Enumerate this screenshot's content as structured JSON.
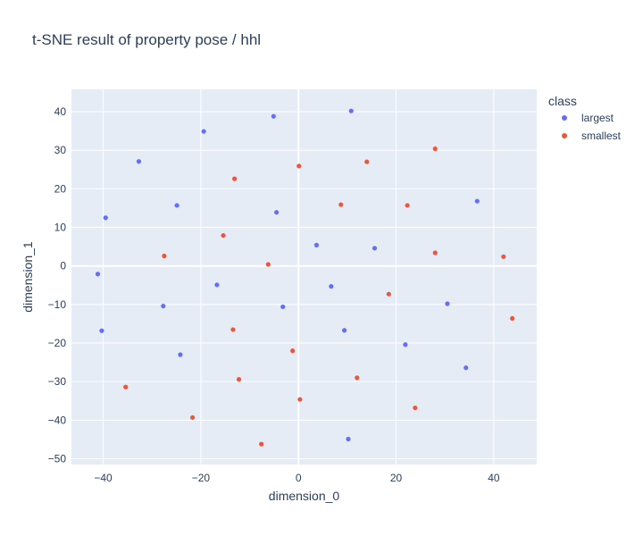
{
  "chart_data": {
    "type": "scatter",
    "title": "t-SNE result of property pose / hhl",
    "xlabel": "dimension_0",
    "ylabel": "dimension_1",
    "xlim": [
      -46.5,
      48.8
    ],
    "ylim": [
      -51.5,
      45.8
    ],
    "xticks": [
      -40,
      -20,
      0,
      20,
      40
    ],
    "yticks": [
      -50,
      -40,
      -30,
      -20,
      -10,
      0,
      10,
      20,
      30,
      40
    ],
    "grid": true,
    "legend": {
      "title": "class",
      "placement": "right"
    },
    "series": [
      {
        "name": "largest",
        "color": "#636efa",
        "points": [
          [
            10.8,
            40.2
          ],
          [
            -5.1,
            38.8
          ],
          [
            -19.4,
            34.9
          ],
          [
            -32.7,
            27.1
          ],
          [
            -39.5,
            12.5
          ],
          [
            -24.9,
            15.7
          ],
          [
            -4.5,
            13.9
          ],
          [
            36.6,
            16.8
          ],
          [
            3.7,
            5.4
          ],
          [
            15.6,
            4.6
          ],
          [
            -41.1,
            -2.1
          ],
          [
            -16.7,
            -4.9
          ],
          [
            6.7,
            -5.3
          ],
          [
            -27.7,
            -10.4
          ],
          [
            -3.2,
            -10.6
          ],
          [
            30.5,
            -9.8
          ],
          [
            -40.3,
            -16.8
          ],
          [
            9.4,
            -16.7
          ],
          [
            21.9,
            -20.4
          ],
          [
            -24.2,
            -23.0
          ],
          [
            34.3,
            -26.4
          ],
          [
            10.2,
            -44.9
          ]
        ]
      },
      {
        "name": "smallest",
        "color": "#ef553b",
        "points": [
          [
            28.0,
            30.4
          ],
          [
            0.1,
            25.9
          ],
          [
            14.0,
            27.0
          ],
          [
            -13.1,
            22.6
          ],
          [
            8.7,
            15.9
          ],
          [
            22.3,
            15.7
          ],
          [
            -15.4,
            7.9
          ],
          [
            -27.5,
            2.6
          ],
          [
            -6.2,
            0.4
          ],
          [
            28.0,
            3.4
          ],
          [
            42.0,
            2.4
          ],
          [
            18.5,
            -7.3
          ],
          [
            43.8,
            -13.6
          ],
          [
            -13.4,
            -16.5
          ],
          [
            -1.2,
            -22.0
          ],
          [
            -35.4,
            -31.4
          ],
          [
            -12.2,
            -29.4
          ],
          [
            12.0,
            -29.0
          ],
          [
            0.3,
            -34.6
          ],
          [
            -21.7,
            -39.3
          ],
          [
            23.9,
            -36.8
          ],
          [
            -7.6,
            -46.2
          ]
        ]
      }
    ]
  }
}
